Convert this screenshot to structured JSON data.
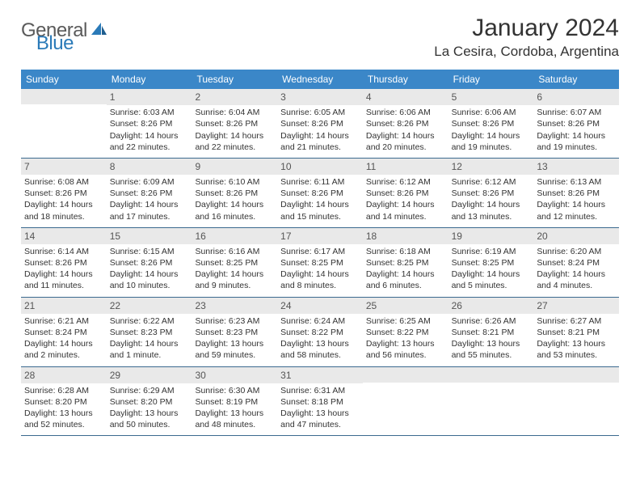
{
  "logo": {
    "text_gray": "General",
    "text_blue": "Blue",
    "icon_color": "#2a7ab8"
  },
  "header": {
    "month_title": "January 2024",
    "location": "La Cesira, Cordoba, Argentina"
  },
  "colors": {
    "header_bg": "#3b87c8",
    "header_text": "#ffffff",
    "daynum_bg": "#e9e9e9",
    "row_border": "#3b6a8f",
    "text": "#333333"
  },
  "day_names": [
    "Sunday",
    "Monday",
    "Tuesday",
    "Wednesday",
    "Thursday",
    "Friday",
    "Saturday"
  ],
  "weeks": [
    [
      {
        "n": "",
        "sr": "",
        "ss": "",
        "dl": ""
      },
      {
        "n": "1",
        "sr": "Sunrise: 6:03 AM",
        "ss": "Sunset: 8:26 PM",
        "dl": "Daylight: 14 hours and 22 minutes."
      },
      {
        "n": "2",
        "sr": "Sunrise: 6:04 AM",
        "ss": "Sunset: 8:26 PM",
        "dl": "Daylight: 14 hours and 22 minutes."
      },
      {
        "n": "3",
        "sr": "Sunrise: 6:05 AM",
        "ss": "Sunset: 8:26 PM",
        "dl": "Daylight: 14 hours and 21 minutes."
      },
      {
        "n": "4",
        "sr": "Sunrise: 6:06 AM",
        "ss": "Sunset: 8:26 PM",
        "dl": "Daylight: 14 hours and 20 minutes."
      },
      {
        "n": "5",
        "sr": "Sunrise: 6:06 AM",
        "ss": "Sunset: 8:26 PM",
        "dl": "Daylight: 14 hours and 19 minutes."
      },
      {
        "n": "6",
        "sr": "Sunrise: 6:07 AM",
        "ss": "Sunset: 8:26 PM",
        "dl": "Daylight: 14 hours and 19 minutes."
      }
    ],
    [
      {
        "n": "7",
        "sr": "Sunrise: 6:08 AM",
        "ss": "Sunset: 8:26 PM",
        "dl": "Daylight: 14 hours and 18 minutes."
      },
      {
        "n": "8",
        "sr": "Sunrise: 6:09 AM",
        "ss": "Sunset: 8:26 PM",
        "dl": "Daylight: 14 hours and 17 minutes."
      },
      {
        "n": "9",
        "sr": "Sunrise: 6:10 AM",
        "ss": "Sunset: 8:26 PM",
        "dl": "Daylight: 14 hours and 16 minutes."
      },
      {
        "n": "10",
        "sr": "Sunrise: 6:11 AM",
        "ss": "Sunset: 8:26 PM",
        "dl": "Daylight: 14 hours and 15 minutes."
      },
      {
        "n": "11",
        "sr": "Sunrise: 6:12 AM",
        "ss": "Sunset: 8:26 PM",
        "dl": "Daylight: 14 hours and 14 minutes."
      },
      {
        "n": "12",
        "sr": "Sunrise: 6:12 AM",
        "ss": "Sunset: 8:26 PM",
        "dl": "Daylight: 14 hours and 13 minutes."
      },
      {
        "n": "13",
        "sr": "Sunrise: 6:13 AM",
        "ss": "Sunset: 8:26 PM",
        "dl": "Daylight: 14 hours and 12 minutes."
      }
    ],
    [
      {
        "n": "14",
        "sr": "Sunrise: 6:14 AM",
        "ss": "Sunset: 8:26 PM",
        "dl": "Daylight: 14 hours and 11 minutes."
      },
      {
        "n": "15",
        "sr": "Sunrise: 6:15 AM",
        "ss": "Sunset: 8:26 PM",
        "dl": "Daylight: 14 hours and 10 minutes."
      },
      {
        "n": "16",
        "sr": "Sunrise: 6:16 AM",
        "ss": "Sunset: 8:25 PM",
        "dl": "Daylight: 14 hours and 9 minutes."
      },
      {
        "n": "17",
        "sr": "Sunrise: 6:17 AM",
        "ss": "Sunset: 8:25 PM",
        "dl": "Daylight: 14 hours and 8 minutes."
      },
      {
        "n": "18",
        "sr": "Sunrise: 6:18 AM",
        "ss": "Sunset: 8:25 PM",
        "dl": "Daylight: 14 hours and 6 minutes."
      },
      {
        "n": "19",
        "sr": "Sunrise: 6:19 AM",
        "ss": "Sunset: 8:25 PM",
        "dl": "Daylight: 14 hours and 5 minutes."
      },
      {
        "n": "20",
        "sr": "Sunrise: 6:20 AM",
        "ss": "Sunset: 8:24 PM",
        "dl": "Daylight: 14 hours and 4 minutes."
      }
    ],
    [
      {
        "n": "21",
        "sr": "Sunrise: 6:21 AM",
        "ss": "Sunset: 8:24 PM",
        "dl": "Daylight: 14 hours and 2 minutes."
      },
      {
        "n": "22",
        "sr": "Sunrise: 6:22 AM",
        "ss": "Sunset: 8:23 PM",
        "dl": "Daylight: 14 hours and 1 minute."
      },
      {
        "n": "23",
        "sr": "Sunrise: 6:23 AM",
        "ss": "Sunset: 8:23 PM",
        "dl": "Daylight: 13 hours and 59 minutes."
      },
      {
        "n": "24",
        "sr": "Sunrise: 6:24 AM",
        "ss": "Sunset: 8:22 PM",
        "dl": "Daylight: 13 hours and 58 minutes."
      },
      {
        "n": "25",
        "sr": "Sunrise: 6:25 AM",
        "ss": "Sunset: 8:22 PM",
        "dl": "Daylight: 13 hours and 56 minutes."
      },
      {
        "n": "26",
        "sr": "Sunrise: 6:26 AM",
        "ss": "Sunset: 8:21 PM",
        "dl": "Daylight: 13 hours and 55 minutes."
      },
      {
        "n": "27",
        "sr": "Sunrise: 6:27 AM",
        "ss": "Sunset: 8:21 PM",
        "dl": "Daylight: 13 hours and 53 minutes."
      }
    ],
    [
      {
        "n": "28",
        "sr": "Sunrise: 6:28 AM",
        "ss": "Sunset: 8:20 PM",
        "dl": "Daylight: 13 hours and 52 minutes."
      },
      {
        "n": "29",
        "sr": "Sunrise: 6:29 AM",
        "ss": "Sunset: 8:20 PM",
        "dl": "Daylight: 13 hours and 50 minutes."
      },
      {
        "n": "30",
        "sr": "Sunrise: 6:30 AM",
        "ss": "Sunset: 8:19 PM",
        "dl": "Daylight: 13 hours and 48 minutes."
      },
      {
        "n": "31",
        "sr": "Sunrise: 6:31 AM",
        "ss": "Sunset: 8:18 PM",
        "dl": "Daylight: 13 hours and 47 minutes."
      },
      {
        "n": "",
        "sr": "",
        "ss": "",
        "dl": ""
      },
      {
        "n": "",
        "sr": "",
        "ss": "",
        "dl": ""
      },
      {
        "n": "",
        "sr": "",
        "ss": "",
        "dl": ""
      }
    ]
  ]
}
